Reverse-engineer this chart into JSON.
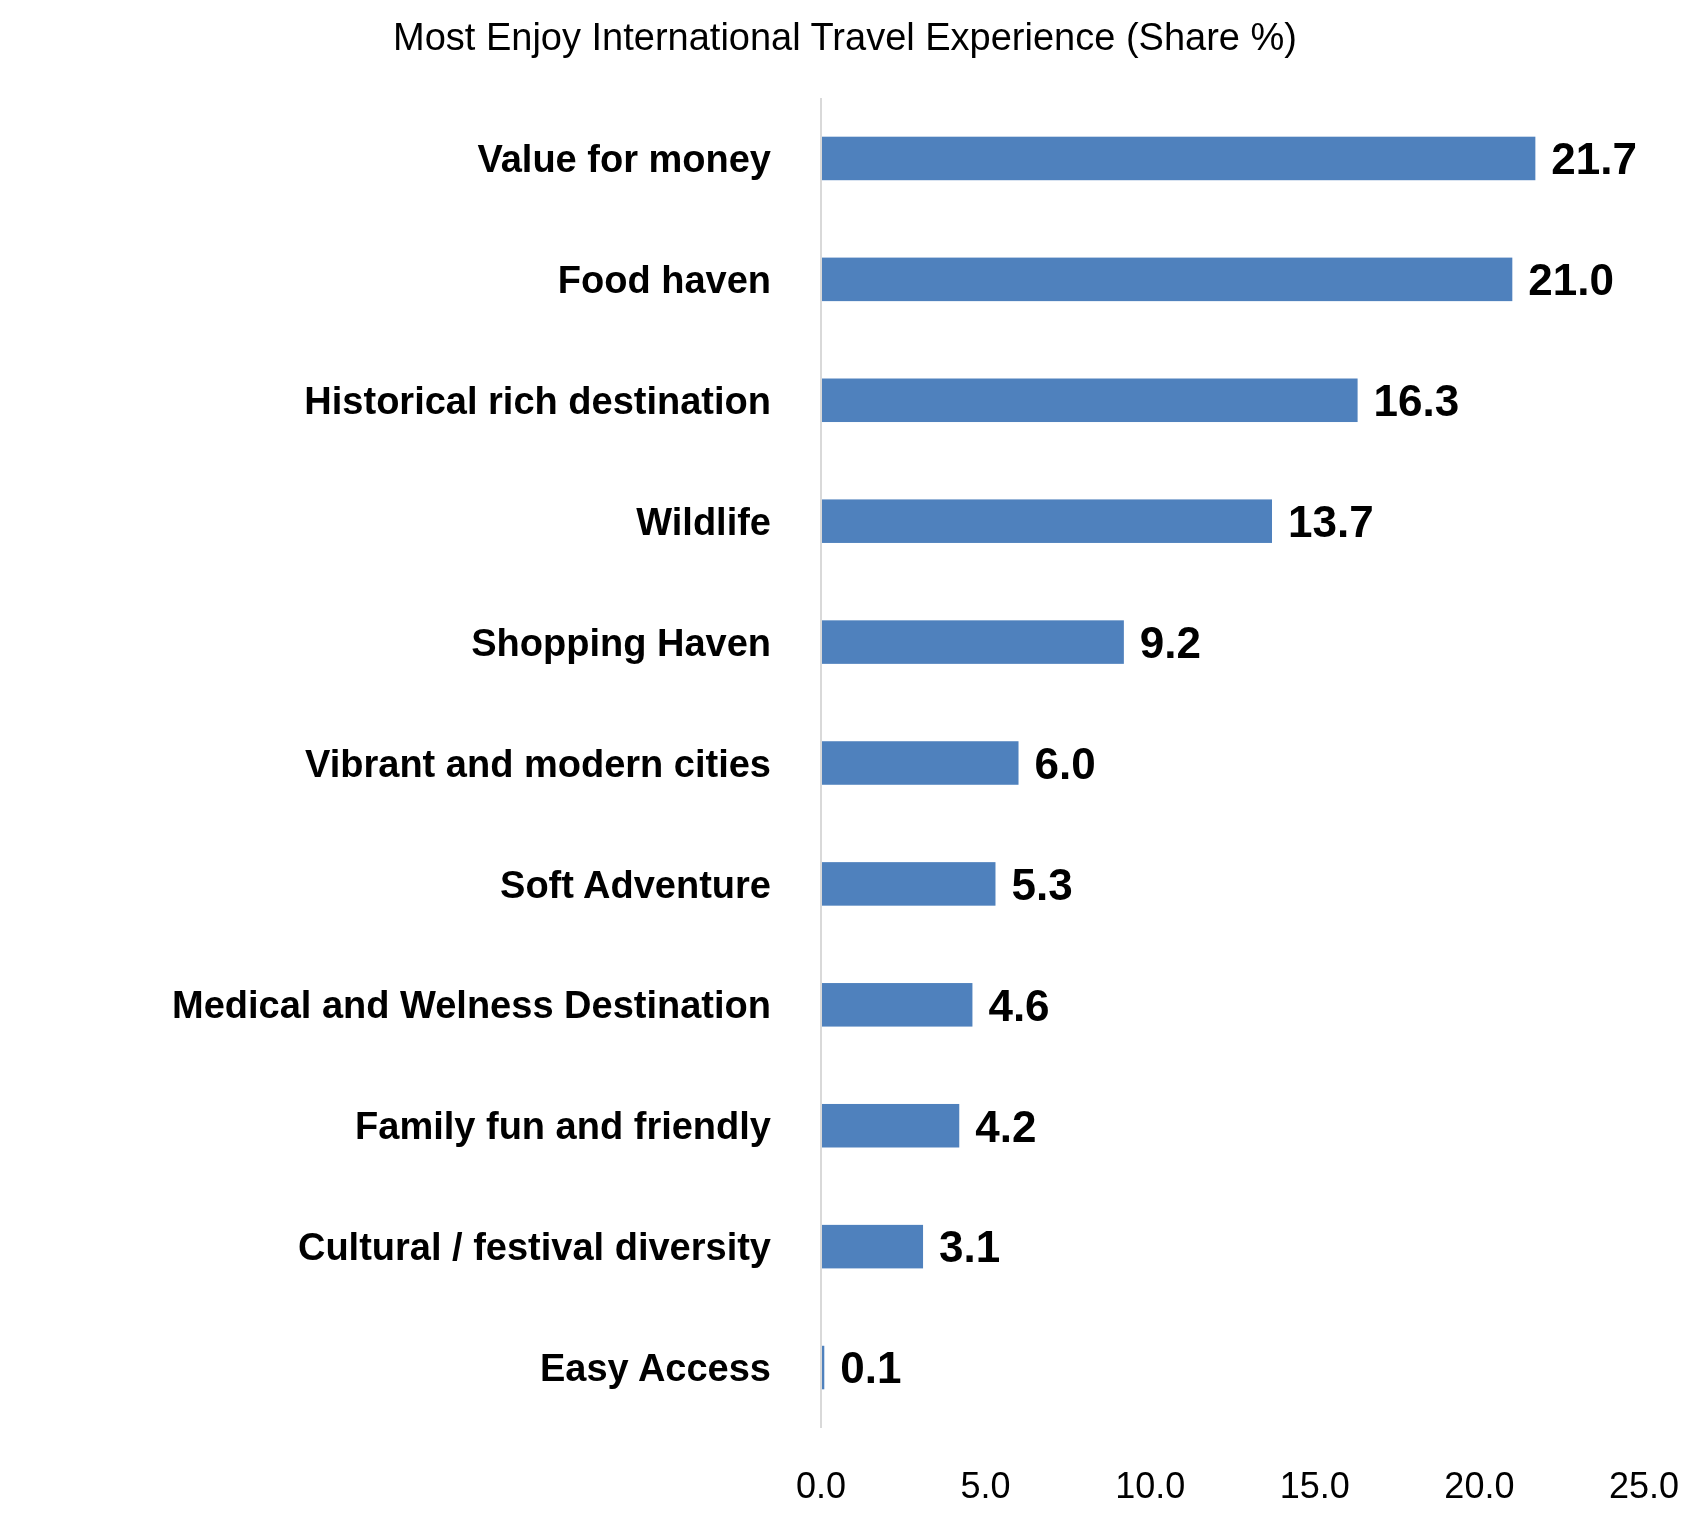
{
  "chart_data": {
    "type": "bar",
    "orientation": "horizontal",
    "title": "Most Enjoy International Travel Experience (Share %)",
    "categories": [
      "Value for money",
      "Food haven",
      "Historical rich destination",
      "Wildlife",
      "Shopping Haven",
      "Vibrant and modern cities",
      "Soft Adventure",
      "Medical and Welness Destination",
      "Family fun and friendly",
      "Cultural / festival diversity",
      "Easy Access"
    ],
    "values": [
      21.7,
      21.0,
      16.3,
      13.7,
      9.2,
      6.0,
      5.3,
      4.6,
      4.2,
      3.1,
      0.1
    ],
    "color": "#4f81bd",
    "xlim": [
      0,
      25
    ],
    "xticks": [
      {
        "value": 0,
        "label": "0.0"
      },
      {
        "value": 5,
        "label": "5.0"
      },
      {
        "value": 10,
        "label": "10.0"
      },
      {
        "value": 15,
        "label": "15.0"
      },
      {
        "value": 20,
        "label": "20.0"
      },
      {
        "value": 25,
        "label": "25.0"
      }
    ],
    "value_labels": [
      "21.7",
      "21.0",
      "16.3",
      "13.7",
      "9.2",
      "6.0",
      "5.3",
      "4.6",
      "4.2",
      "3.1",
      "0.1"
    ],
    "grid": false
  }
}
